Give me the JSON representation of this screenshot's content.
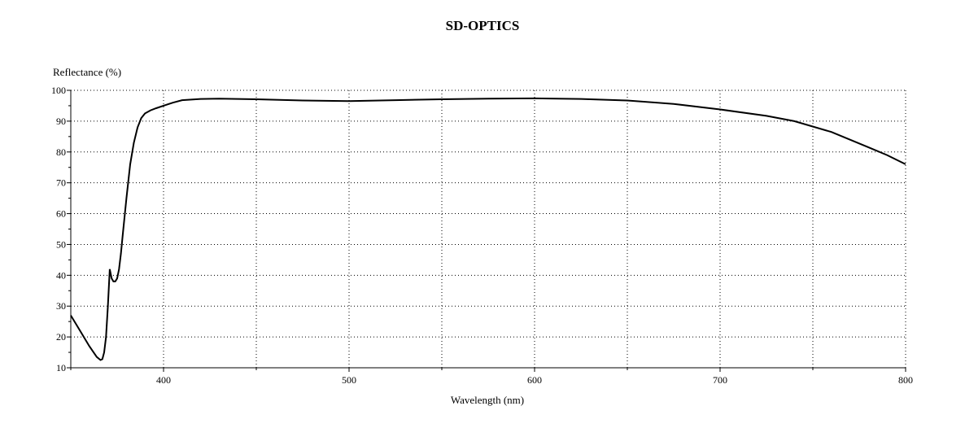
{
  "chart_data": {
    "type": "line",
    "title": "SD-OPTICS",
    "xlabel": "Wavelength (nm)",
    "ylabel": "Reflectance (%)",
    "xlim": [
      350,
      800
    ],
    "ylim": [
      10,
      100
    ],
    "xticks": [
      400,
      500,
      600,
      700,
      800
    ],
    "yticks": [
      10,
      20,
      30,
      40,
      50,
      60,
      70,
      80,
      90,
      100
    ],
    "grid": true,
    "legend": "none",
    "line_color": "#000000",
    "series": [
      {
        "x": [
          350,
          355,
          360,
          364,
          366,
          367,
          368,
          369,
          370,
          371,
          372,
          373,
          374,
          375,
          376,
          377,
          378,
          380,
          382,
          384,
          386,
          388,
          390,
          393,
          396,
          400,
          405,
          410,
          420,
          430,
          450,
          475,
          500,
          525,
          550,
          575,
          600,
          625,
          650,
          675,
          700,
          725,
          740,
          760,
          780,
          790,
          800
        ],
        "y": [
          27,
          22,
          17,
          13.5,
          12.5,
          12.8,
          15,
          20,
          30,
          42,
          39,
          38,
          38,
          39,
          42,
          47,
          53,
          65,
          76,
          83,
          88,
          91,
          92.5,
          93.5,
          94.2,
          95,
          96,
          96.8,
          97.2,
          97.3,
          97.1,
          96.7,
          96.5,
          96.8,
          97.1,
          97.3,
          97.4,
          97.2,
          96.7,
          95.6,
          93.8,
          91.7,
          90,
          86.5,
          81.5,
          79,
          76
        ]
      }
    ]
  }
}
